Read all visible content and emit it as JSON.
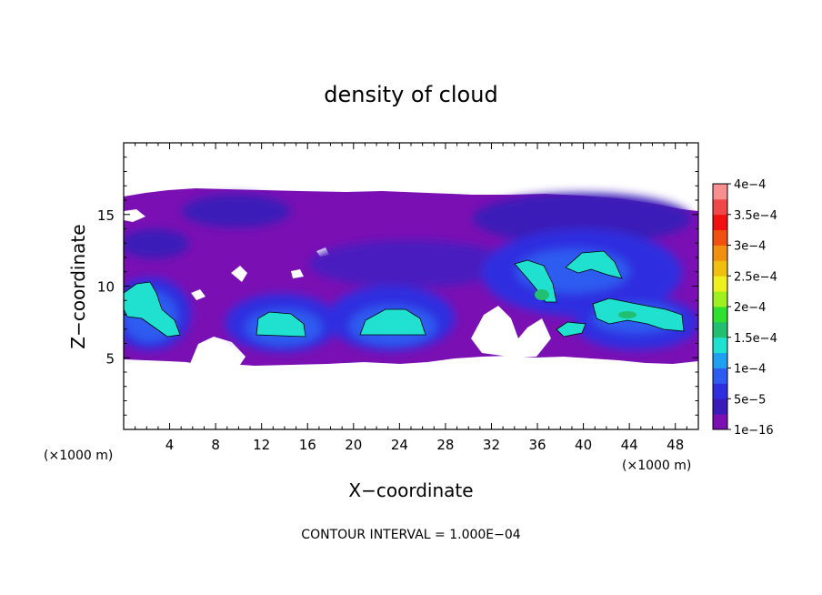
{
  "chart_data": {
    "type": "heatmap",
    "title": "density of cloud",
    "xlabel": "X−coordinate",
    "ylabel": "Z−coordinate",
    "x_unit_left": "(×1000 m)",
    "x_unit_right": "(×1000 m)",
    "footer": "CONTOUR INTERVAL = 1.000E−04",
    "xlim": [
      0,
      50
    ],
    "ylim": [
      0,
      20
    ],
    "x_ticks": [
      4,
      8,
      12,
      16,
      20,
      24,
      28,
      32,
      36,
      40,
      44,
      48
    ],
    "y_ticks": [
      5,
      10,
      15
    ],
    "legend_placement": "right",
    "colorbar": {
      "labels": [
        "1e−16",
        "5e−5",
        "1e−4",
        "1.5e−4",
        "2e−4",
        "2.5e−4",
        "3e−4",
        "3.5e−4",
        "4e−4"
      ],
      "colors": [
        "#7a10b4",
        "#3a1ab8",
        "#2f2fe0",
        "#2f5cf0",
        "#20a0f0",
        "#20e0d0",
        "#20c070",
        "#30e030",
        "#a0f020",
        "#f0f020",
        "#f0c010",
        "#f09010",
        "#f05010",
        "#f01010",
        "#f04848",
        "#f89090"
      ]
    },
    "cloud_layer_z": [
      5,
      16.5
    ],
    "contour_level": 0.0001,
    "regions": [
      {
        "x": [
          1,
          5
        ],
        "z": [
          6.5,
          9.8
        ],
        "value": 0.000125
      },
      {
        "x": [
          10,
          17
        ],
        "z": [
          6.5,
          8.5
        ],
        "value": 0.00012
      },
      {
        "x": [
          20,
          26
        ],
        "z": [
          6.5,
          8.5
        ],
        "value": 0.00012
      },
      {
        "x": [
          34,
          42
        ],
        "z": [
          9.5,
          12
        ],
        "value": 0.00013
      },
      {
        "x": [
          40,
          49
        ],
        "z": [
          7,
          9
        ],
        "value": 0.00013
      }
    ]
  }
}
